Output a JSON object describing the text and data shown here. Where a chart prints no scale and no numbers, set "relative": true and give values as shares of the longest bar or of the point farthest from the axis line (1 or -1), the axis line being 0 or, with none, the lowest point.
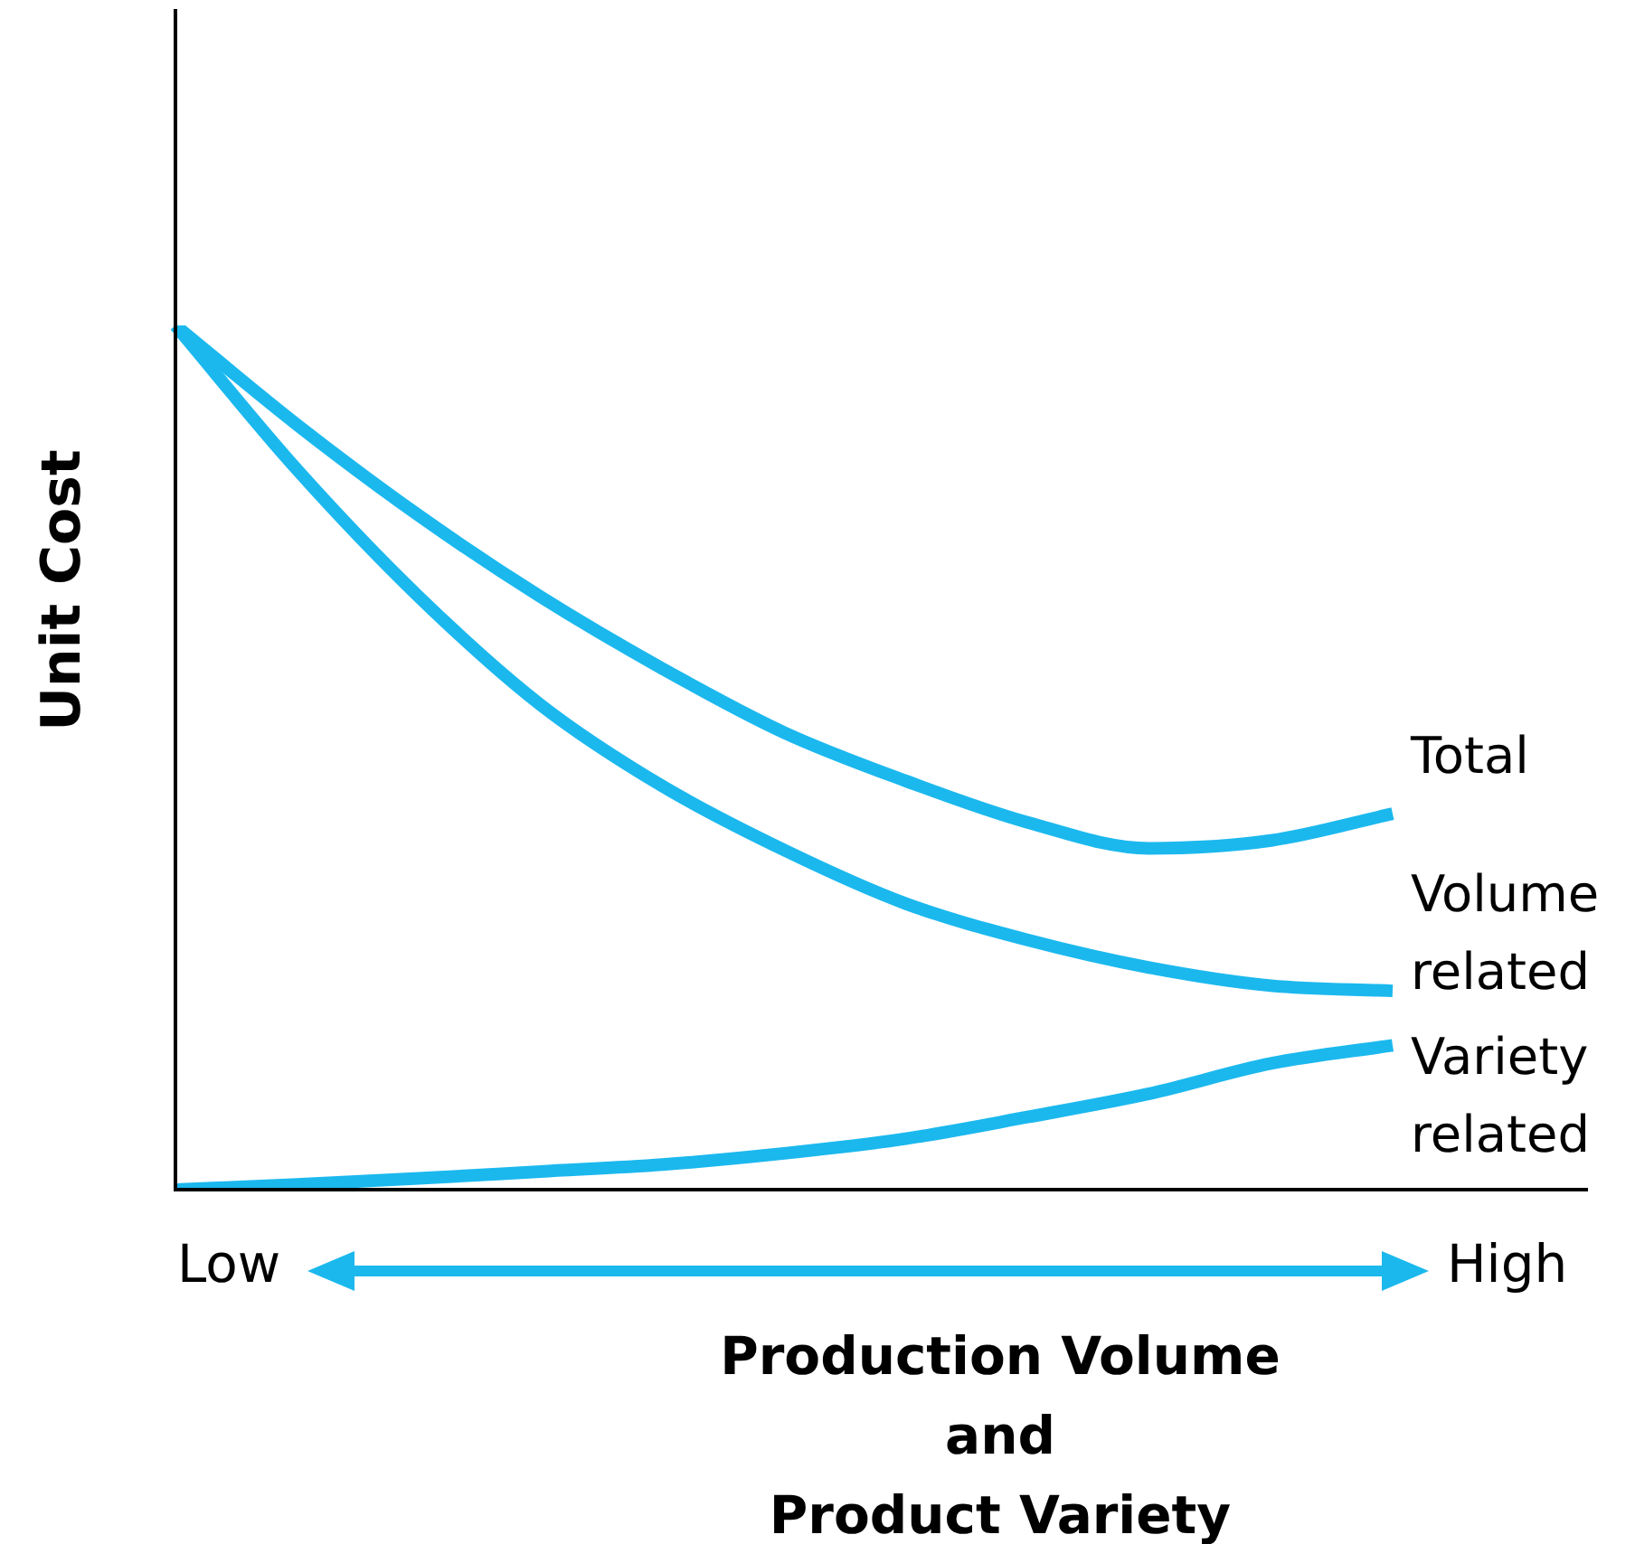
{
  "chart_data": {
    "type": "line",
    "relative": true,
    "ylabel": "Unit Cost",
    "xlabel": "Production Volume\nand\nProduct Variety",
    "annotations": [
      "Low",
      "High"
    ],
    "categories": [
      null,
      null,
      null,
      null,
      null,
      null,
      null,
      null,
      null,
      null,
      null
    ],
    "legend": false,
    "marker": "none",
    "line_style": "solid",
    "series": [
      {
        "name": "Total",
        "color": "#1bb8ee",
        "values": [
          1,
          0.885,
          0.78,
          0.686,
          0.603,
          0.529,
          0.473,
          0.425,
          0.395,
          0.404,
          0.435
        ]
      },
      {
        "name": "Volume related",
        "color": "#1bb8ee",
        "values": [
          1,
          0.833,
          0.686,
          0.561,
          0.467,
          0.393,
          0.331,
          0.289,
          0.257,
          0.236,
          0.23
        ]
      },
      {
        "name": "Variety related",
        "color": "#1bb8ee",
        "values": [
          0,
          0.006,
          0.013,
          0.021,
          0.029,
          0.042,
          0.059,
          0.084,
          0.111,
          0.146,
          0.167
        ]
      }
    ]
  }
}
